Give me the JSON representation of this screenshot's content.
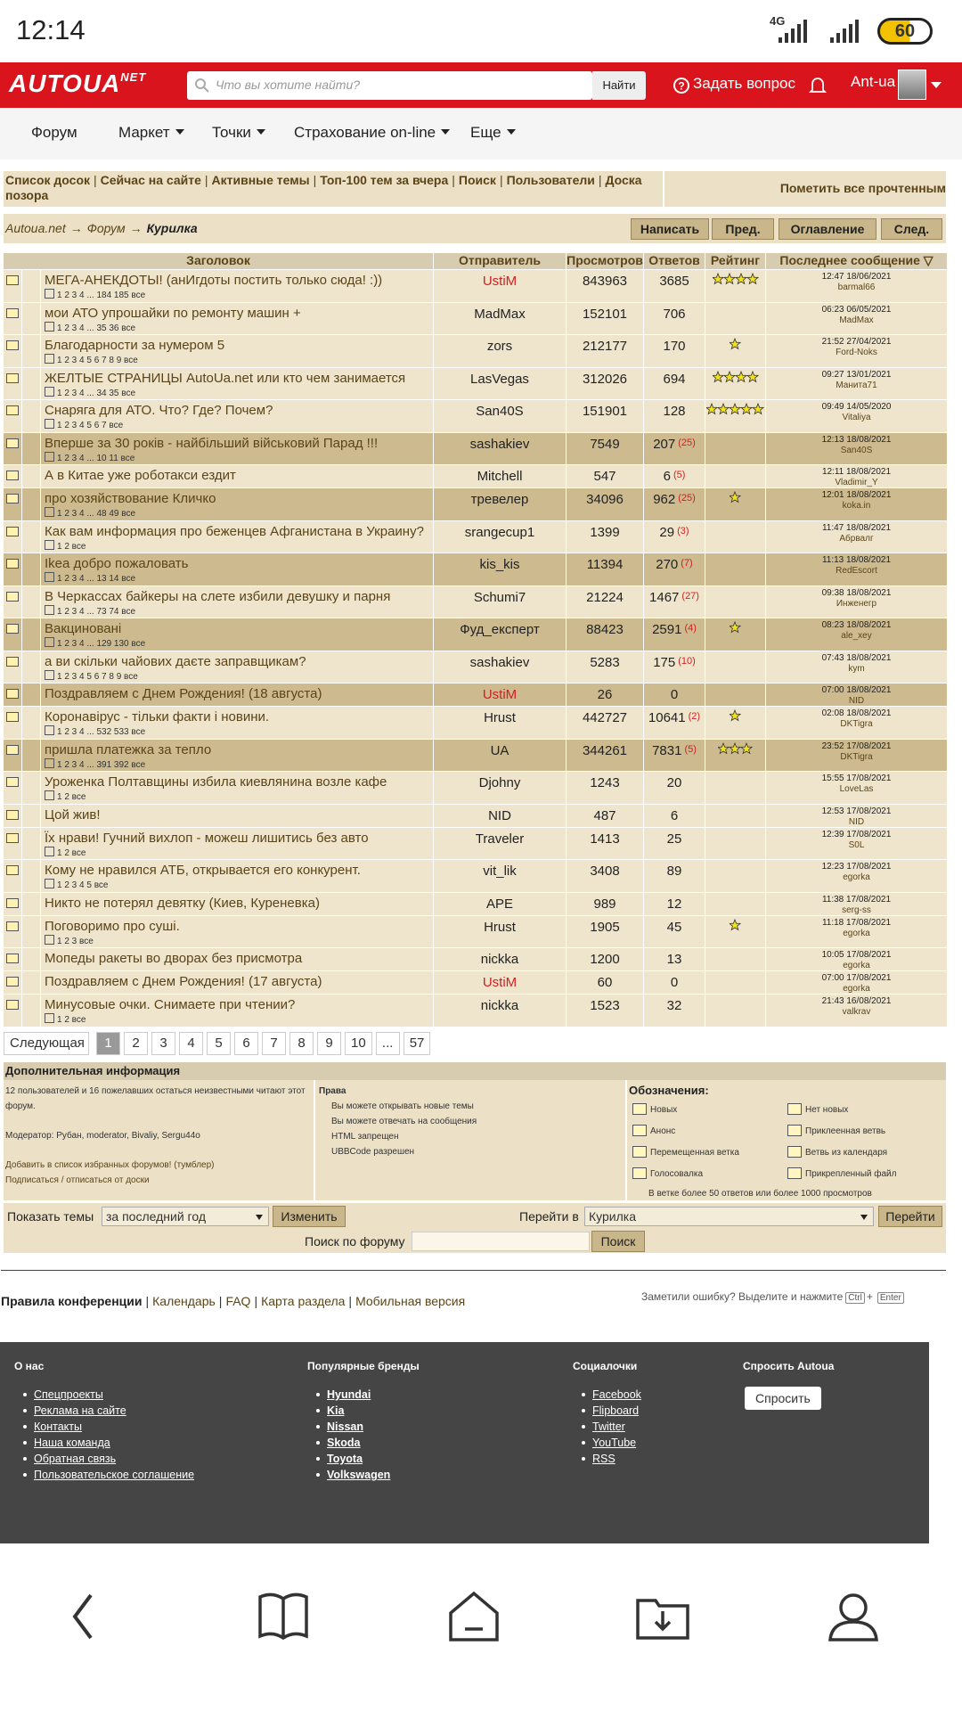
{
  "status": {
    "time": "12:14",
    "network": "4G",
    "battery": "60"
  },
  "header": {
    "logo": "AUTOUA",
    "logo_sup": "NET",
    "search_placeholder": "Что вы хотите найти?",
    "search_button": "Найти",
    "ask": "Задать вопрос",
    "user": "Ant-ua"
  },
  "nav": [
    "Форум",
    "Маркет",
    "Точки",
    "Страхование on-line",
    "Еще"
  ],
  "links": {
    "items": [
      "Список досок",
      "Сейчас на сайте",
      "Активные темы",
      "Топ-100 тем за вчера",
      "Поиск",
      "Пользователи",
      "Доска позора"
    ],
    "separator": "|",
    "mark_read": "Пометить все прочтенным"
  },
  "breadcrumb": {
    "items": [
      "Autoua.net",
      "Форум",
      "Курилка"
    ],
    "arrow": "→",
    "buttons": [
      "Написать",
      "Пред.",
      "Оглавление",
      "След."
    ]
  },
  "table": {
    "headers": [
      "Заголовок",
      "Отправитель",
      "Просмотров",
      "Ответов",
      "Рейтинг",
      "Последнее сообщение ▽"
    ],
    "rows": [
      {
        "title": "МЕГА-АНЕКДОТЫ! (анИгдоты постить только сюда! :))",
        "pages": "1 2 3 4 ... 184 185 все",
        "author": "UstiM",
        "views": 843963,
        "replies": 3685,
        "new": null,
        "rating": 4,
        "time": "12:47 18/06/2021",
        "last": "barmal66",
        "hot": false
      },
      {
        "title": "мои АТО упрошайки по ремонту машин +",
        "pages": "1 2 3 4 ... 35 36 все",
        "author": "MadMax",
        "views": 152101,
        "replies": 706,
        "new": null,
        "rating": null,
        "time": "06:23 06/05/2021",
        "last": "MadMax",
        "hot": false
      },
      {
        "title": "Благодарности за нумером 5",
        "pages": "1 2 3 4 5 6 7 8 9 все",
        "author": "zors",
        "views": 212177,
        "replies": 170,
        "new": null,
        "rating": 1,
        "time": "21:52 27/04/2021",
        "last": "Ford-Noks",
        "hot": false
      },
      {
        "title": "ЖЕЛТЫЕ СТРАНИЦЫ AutoUa.net или кто чем занимается",
        "pages": "1 2 3 4 ... 34 35 все",
        "author": "LasVegas",
        "views": 312026,
        "replies": 694,
        "new": null,
        "rating": 4,
        "time": "09:27 13/01/2021",
        "last": "Манита71",
        "hot": false
      },
      {
        "title": "Снаряга для АТО. Что? Где? Почем?",
        "pages": "1 2 3 4 5 6 7 все",
        "author": "San40S",
        "views": 151901,
        "replies": 128,
        "new": null,
        "rating": 5,
        "time": "09:49 14/05/2020",
        "last": "Vitaliya",
        "hot": false
      },
      {
        "title": "Вперше за 30 років - найбільший військовий Парад !!!",
        "pages": "1 2 3 4 ... 10 11 все",
        "author": "sashakiev",
        "views": 7549,
        "replies": 207,
        "new": "(25)",
        "rating": null,
        "time": "12:13 18/08/2021",
        "last": "San40S",
        "hot": true
      },
      {
        "title": "А в Китае уже роботакси ездит",
        "pages": null,
        "author": "Mitchell",
        "views": 547,
        "replies": 6,
        "new": "(5)",
        "rating": null,
        "time": "12:11 18/08/2021",
        "last": "Vladimir_Y",
        "hot": false
      },
      {
        "title": "про хозяйствование Кличко",
        "pages": "1 2 3 4 ... 48 49 все",
        "author": "тревелер",
        "views": 34096,
        "replies": 962,
        "new": "(25)",
        "rating": 1,
        "time": "12:01 18/08/2021",
        "last": "koka.in",
        "hot": true
      },
      {
        "title": "Как вам информация про беженцев Афганистана в Украину?",
        "pages": "1 2 все",
        "author": "srangecup1",
        "views": 1399,
        "replies": 29,
        "new": "(3)",
        "rating": null,
        "time": "11:47 18/08/2021",
        "last": "Абрвалг",
        "hot": false
      },
      {
        "title": "Ikea добро пожаловать",
        "pages": "1 2 3 4 ... 13 14 все",
        "author": "kis_kis",
        "views": 11394,
        "replies": 270,
        "new": "(7)",
        "rating": null,
        "time": "11:13 18/08/2021",
        "last": "RedEscort",
        "hot": true
      },
      {
        "title": "В Черкассах байкеры на слете избили девушку и парня",
        "pages": "1 2 3 4 ... 73 74 все",
        "author": "Schumi7",
        "views": 21224,
        "replies": 1467,
        "new": "(27)",
        "rating": null,
        "time": "09:38 18/08/2021",
        "last": "Инженегр",
        "hot": false
      },
      {
        "title": "Вакциновані",
        "pages": "1 2 3 4 ... 129 130 все",
        "author": "Фуд_експерт",
        "views": 88423,
        "replies": 2591,
        "new": "(4)",
        "rating": 1,
        "time": "08:23 18/08/2021",
        "last": "ale_xey",
        "hot": true
      },
      {
        "title": "а ви скільки чайових даєте заправщикам?",
        "pages": "1 2 3 4 5 6 7 8 9 все",
        "author": "sashakiev",
        "views": 5283,
        "replies": 175,
        "new": "(10)",
        "rating": null,
        "time": "07:43 18/08/2021",
        "last": "kym",
        "hot": false
      },
      {
        "title": "Поздравляем с Днем Рождения! (18 августа)",
        "pages": null,
        "author": "UstiM",
        "views": 26,
        "replies": 0,
        "new": null,
        "rating": null,
        "time": "07:00 18/08/2021",
        "last": "NID",
        "hot": true
      },
      {
        "title": "Коронавірус - тільки факти і новини.",
        "pages": "1 2 3 4 ... 532 533 все",
        "author": "Hrust",
        "views": 442727,
        "replies": 10641,
        "new": "(2)",
        "rating": 1,
        "time": "02:08 18/08/2021",
        "last": "DKTigra",
        "hot": false
      },
      {
        "title": "пришла платежка за тепло",
        "pages": "1 2 3 4 ... 391 392 все",
        "author": "UA",
        "views": 344261,
        "replies": 7831,
        "new": "(5)",
        "rating": 3,
        "time": "23:52 17/08/2021",
        "last": "DKTigra",
        "hot": true
      },
      {
        "title": "Уроженка Полтавщины избила киевлянина возле кафе",
        "pages": "1 2 все",
        "author": "Djohny",
        "views": 1243,
        "replies": 20,
        "new": null,
        "rating": null,
        "time": "15:55 17/08/2021",
        "last": "LoveLas",
        "hot": false
      },
      {
        "title": "Цой жив!",
        "pages": null,
        "author": "NID",
        "views": 487,
        "replies": 6,
        "new": null,
        "rating": null,
        "time": "12:53 17/08/2021",
        "last": "NID",
        "hot": false
      },
      {
        "title": "Їх нрави! Гучний вихлоп - можеш лишитись без авто",
        "pages": "1 2 все",
        "author": "Traveler",
        "views": 1413,
        "replies": 25,
        "new": null,
        "rating": null,
        "time": "12:39 17/08/2021",
        "last": "S0L",
        "hot": false
      },
      {
        "title": "Кому не нравился АТБ, открывается его конкурент.",
        "pages": "1 2 3 4 5 все",
        "author": "vit_lik",
        "views": 3408,
        "replies": 89,
        "new": null,
        "rating": null,
        "time": "12:23 17/08/2021",
        "last": "egorka",
        "hot": false
      },
      {
        "title": "Никто не потерял девятку (Киев, Куреневка)",
        "pages": null,
        "author": "APE",
        "views": 989,
        "replies": 12,
        "new": null,
        "rating": null,
        "time": "11:38 17/08/2021",
        "last": "serg-ss",
        "hot": false
      },
      {
        "title": "Поговоримо про суші.",
        "pages": "1 2 3 все",
        "author": "Hrust",
        "views": 1905,
        "replies": 45,
        "new": null,
        "rating": 1,
        "time": "11:18 17/08/2021",
        "last": "egorka",
        "hot": false
      },
      {
        "title": "Мопеды ракеты во дворах без присмотра",
        "pages": null,
        "author": "nickka",
        "views": 1200,
        "replies": 13,
        "new": null,
        "rating": null,
        "time": "10:05 17/08/2021",
        "last": "egorka",
        "hot": false
      },
      {
        "title": "Поздравляем с Днем Рождения! (17 августа)",
        "pages": null,
        "author": "UstiM",
        "views": 60,
        "replies": 0,
        "new": null,
        "rating": null,
        "time": "07:00 17/08/2021",
        "last": "egorka",
        "hot": false
      },
      {
        "title": "Минусовые очки. Снимаете при чтении?",
        "pages": "1 2 все",
        "author": "nickka",
        "views": 1523,
        "replies": 32,
        "new": null,
        "rating": null,
        "time": "21:43 16/08/2021",
        "last": "valkrav",
        "hot": false
      }
    ]
  },
  "pagination": {
    "next": "Следующая",
    "pages": [
      "1",
      "2",
      "3",
      "4",
      "5",
      "6",
      "7",
      "8",
      "9",
      "10",
      "...",
      "57"
    ]
  },
  "info": {
    "title": "Дополнительная информация",
    "online": "12 пользователей и 16 пожелавших остаться неизвестными читают этот форум.",
    "moderators": "Модератор:  Рубан, moderator, Bivaliy, Sergu44o",
    "favorite": "Добавить в список избранных форумов! (тумблер)",
    "subscribe": "Подписаться / отписаться от доски",
    "rights_title": "Права",
    "rights": [
      "Вы можете открывать новые темы",
      "Вы можете отвечать на сообщения",
      "HTML запрещен",
      "UBBCode разрешен"
    ],
    "legend_title": "Обозначения:",
    "legend": [
      "Новых",
      "Нет новых",
      "Анонс",
      "Приклеенная ветвь",
      "Перемещенная ветка",
      "Ветвь из календаря",
      "Голосовалка",
      "Прикрепленный файл"
    ],
    "legend_note": "В ветке более 50 ответов или более 1000 просмотров"
  },
  "controls": {
    "show": "Показать темы",
    "period": "за последний год",
    "change": "Изменить",
    "goto": "Перейти в",
    "board": "Курилка",
    "go": "Перейти",
    "search_label": "Поиск по форуму",
    "search": "Поиск"
  },
  "footer_links": {
    "items": [
      "Правила конференции",
      "Календарь",
      "FAQ",
      "Карта раздела",
      "Мобильная версия"
    ],
    "error_note": "Заметили ошибку? Выделите и нажмите",
    "keys": [
      "Ctrl",
      "+",
      "Enter"
    ]
  },
  "footer": {
    "columns": [
      {
        "title": "О нас",
        "links": [
          "Спецпроекты",
          "Реклама на сайте",
          "Контакты",
          "Наша команда",
          "Обратная связь",
          "Пользовательское соглашение"
        ]
      },
      {
        "title": "Популярные бренды",
        "links": [
          "Hyundai",
          "Kia",
          "Nissan",
          "Skoda",
          "Toyota",
          "Volkswagen"
        ]
      },
      {
        "title": "Социалочки",
        "links": [
          "Facebook",
          "Flipboard",
          "Twitter",
          "YouTube",
          "RSS"
        ]
      }
    ],
    "ask_title": "Спросить Autoua",
    "ask_button": "Спросить"
  }
}
